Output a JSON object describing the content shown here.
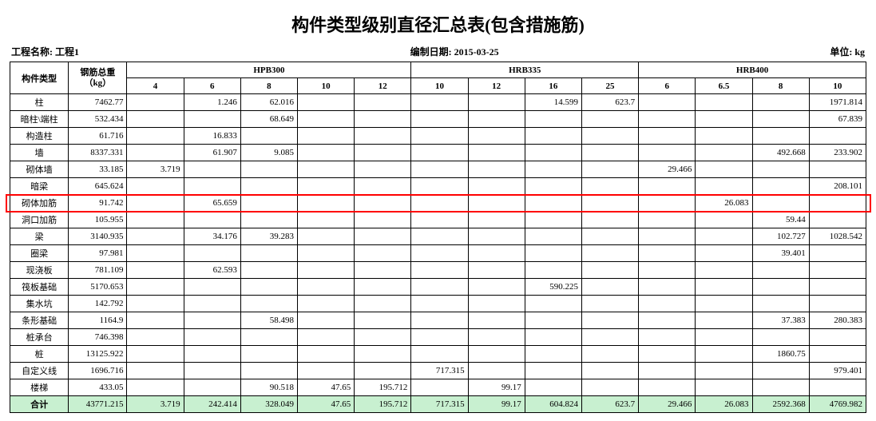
{
  "title": "构件类型级别直径汇总表(包含措施筋)",
  "meta": {
    "project_label": "工程名称:",
    "project_name": "工程1",
    "date_label": "编制日期:",
    "date_value": "2015-03-25",
    "unit_label": "单位:",
    "unit_value": "kg"
  },
  "header": {
    "row_label": "构件类型",
    "total_label": "钢筋总重\n（kg）",
    "groups": [
      {
        "name": "HPB300",
        "cols": [
          "4",
          "6",
          "8",
          "10",
          "12"
        ]
      },
      {
        "name": "HRB335",
        "cols": [
          "10",
          "12",
          "16",
          "25"
        ]
      },
      {
        "name": "HRB400",
        "cols": [
          "6",
          "6.5",
          "8",
          "10"
        ]
      }
    ]
  },
  "rows": [
    {
      "label": "柱",
      "total": "7462.77",
      "v": [
        "",
        "1.246",
        "62.016",
        "",
        "",
        "",
        "",
        "14.599",
        "623.7",
        "",
        "",
        "",
        "1971.814"
      ]
    },
    {
      "label": "暗柱\\端柱",
      "total": "532.434",
      "v": [
        "",
        "",
        "68.649",
        "",
        "",
        "",
        "",
        "",
        "",
        "",
        "",
        "",
        "67.839"
      ]
    },
    {
      "label": "构造柱",
      "total": "61.716",
      "v": [
        "",
        "16.833",
        "",
        "",
        "",
        "",
        "",
        "",
        "",
        "",
        "",
        "",
        ""
      ]
    },
    {
      "label": "墙",
      "total": "8337.331",
      "v": [
        "",
        "61.907",
        "9.085",
        "",
        "",
        "",
        "",
        "",
        "",
        "",
        "",
        "492.668",
        "233.902"
      ]
    },
    {
      "label": "砌体墙",
      "total": "33.185",
      "v": [
        "3.719",
        "",
        "",
        "",
        "",
        "",
        "",
        "",
        "",
        "29.466",
        "",
        "",
        ""
      ]
    },
    {
      "label": "暗梁",
      "total": "645.624",
      "v": [
        "",
        "",
        "",
        "",
        "",
        "",
        "",
        "",
        "",
        "",
        "",
        "",
        "208.101"
      ]
    },
    {
      "label": "砌体加筋",
      "total": "91.742",
      "v": [
        "",
        "65.659",
        "",
        "",
        "",
        "",
        "",
        "",
        "",
        "",
        "26.083",
        "",
        ""
      ],
      "highlight": true
    },
    {
      "label": "洞口加筋",
      "total": "105.955",
      "v": [
        "",
        "",
        "",
        "",
        "",
        "",
        "",
        "",
        "",
        "",
        "",
        "59.44",
        ""
      ]
    },
    {
      "label": "梁",
      "total": "3140.935",
      "v": [
        "",
        "34.176",
        "39.283",
        "",
        "",
        "",
        "",
        "",
        "",
        "",
        "",
        "102.727",
        "1028.542"
      ]
    },
    {
      "label": "圈梁",
      "total": "97.981",
      "v": [
        "",
        "",
        "",
        "",
        "",
        "",
        "",
        "",
        "",
        "",
        "",
        "39.401",
        ""
      ]
    },
    {
      "label": "现浇板",
      "total": "781.109",
      "v": [
        "",
        "62.593",
        "",
        "",
        "",
        "",
        "",
        "",
        "",
        "",
        "",
        "",
        ""
      ]
    },
    {
      "label": "筏板基础",
      "total": "5170.653",
      "v": [
        "",
        "",
        "",
        "",
        "",
        "",
        "",
        "590.225",
        "",
        "",
        "",
        "",
        ""
      ]
    },
    {
      "label": "集水坑",
      "total": "142.792",
      "v": [
        "",
        "",
        "",
        "",
        "",
        "",
        "",
        "",
        "",
        "",
        "",
        "",
        ""
      ]
    },
    {
      "label": "条形基础",
      "total": "1164.9",
      "v": [
        "",
        "",
        "58.498",
        "",
        "",
        "",
        "",
        "",
        "",
        "",
        "",
        "37.383",
        "280.383"
      ]
    },
    {
      "label": "桩承台",
      "total": "746.398",
      "v": [
        "",
        "",
        "",
        "",
        "",
        "",
        "",
        "",
        "",
        "",
        "",
        "",
        ""
      ]
    },
    {
      "label": "桩",
      "total": "13125.922",
      "v": [
        "",
        "",
        "",
        "",
        "",
        "",
        "",
        "",
        "",
        "",
        "",
        "1860.75",
        ""
      ]
    },
    {
      "label": "自定义线",
      "total": "1696.716",
      "v": [
        "",
        "",
        "",
        "",
        "",
        "717.315",
        "",
        "",
        "",
        "",
        "",
        "",
        "979.401"
      ]
    },
    {
      "label": "楼梯",
      "total": "433.05",
      "v": [
        "",
        "",
        "90.518",
        "47.65",
        "195.712",
        "",
        "99.17",
        "",
        "",
        "",
        "",
        "",
        ""
      ]
    }
  ],
  "total_row": {
    "label": "合计",
    "total": "43771.215",
    "v": [
      "3.719",
      "242.414",
      "328.049",
      "47.65",
      "195.712",
      "717.315",
      "99.17",
      "604.824",
      "623.7",
      "29.466",
      "26.083",
      "2592.368",
      "4769.982"
    ]
  },
  "style": {
    "highlight_color": "#ff0000",
    "total_row_bg": "#c8f0d0"
  }
}
